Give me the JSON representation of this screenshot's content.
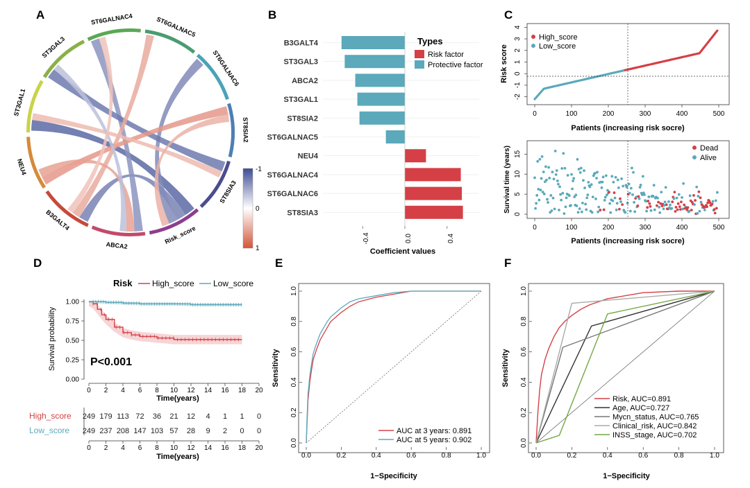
{
  "colors": {
    "red": "#d44046",
    "teal": "#5ba9bb",
    "blue": "#3f4d94",
    "orange": "#d3543a",
    "green": "#74a843",
    "gray": "#888888",
    "dark": "#333333"
  },
  "chart_data": [
    {
      "panel": "A",
      "type": "chord",
      "sectors": [
        "ST3GAL1",
        "ST3GAL3",
        "ST6GALNAC4",
        "ST6GALNAC5",
        "ST6GALNAC6",
        "ST8SIA2",
        "ST8SIA3",
        "Risk_score",
        "ABCA2",
        "B3GALT4",
        "NEU4"
      ],
      "legend": {
        "ticks": [
          "-1",
          "0",
          "1"
        ]
      },
      "links": [
        {
          "a": "Risk_score",
          "b": "ST3GAL1",
          "corr": -0.85
        },
        {
          "a": "Risk_score",
          "b": "B3GALT4",
          "corr": -0.7
        },
        {
          "a": "Risk_score",
          "b": "ST6GALNAC6",
          "corr": -0.65
        },
        {
          "a": "ABCA2",
          "b": "ST6GALNAC4",
          "corr": -0.6
        },
        {
          "a": "ST8SIA3",
          "b": "ST3GAL3",
          "corr": -0.75
        },
        {
          "a": "NEU4",
          "b": "ST8SIA2",
          "corr": 0.6
        },
        {
          "a": "B3GALT4",
          "b": "ST6GALNAC5",
          "corr": 0.5
        },
        {
          "a": "ST3GAL1",
          "b": "ST8SIA3",
          "corr": 0.4
        },
        {
          "a": "ABCA2",
          "b": "NEU4",
          "corr": 0.55
        },
        {
          "a": "Risk_score",
          "b": "ST8SIA2",
          "corr": 0.45
        },
        {
          "a": "ST3GAL3",
          "b": "ABCA2",
          "corr": -0.35
        },
        {
          "a": "ST6GALNAC4",
          "b": "B3GALT4",
          "corr": 0.35
        }
      ]
    },
    {
      "panel": "B",
      "type": "bar",
      "categories": [
        "B3GALT4",
        "ST3GAL3",
        "ABCA2",
        "ST3GAL1",
        "ST8SIA2",
        "ST6GALNAC5",
        "NEU4",
        "ST6GALNAC4",
        "ST6GALNAC6",
        "ST8SIA3"
      ],
      "values": [
        -0.6,
        -0.57,
        -0.47,
        -0.45,
        -0.43,
        -0.18,
        0.2,
        0.53,
        0.54,
        0.55
      ],
      "xlabel": "Coefficient values",
      "xticks": [
        "-0.4",
        "0.0",
        "0.4"
      ],
      "legend": {
        "title": "Types",
        "items": [
          "Risk factor",
          "Protective factor"
        ]
      }
    },
    {
      "panel": "C",
      "type": "scatter",
      "top": {
        "ylabel": "Risk score",
        "xlabel": "Patients (increasing risk socre)",
        "xticks": [
          "0",
          "100",
          "200",
          "300",
          "400",
          "500"
        ],
        "yticks": [
          "4",
          "3",
          "2",
          "1",
          "0",
          "-1",
          "-2"
        ],
        "cutoff": 245,
        "legend": [
          "High_score",
          "Low_score"
        ]
      },
      "bottom": {
        "ylabel": "Survival time (years)",
        "xlabel": "Patients (increasing risk socre)",
        "xticks": [
          "0",
          "100",
          "200",
          "300",
          "400",
          "500"
        ],
        "yticks": [
          "0",
          "5",
          "10",
          "15"
        ],
        "legend": [
          "Dead",
          "Alive"
        ]
      }
    },
    {
      "panel": "D",
      "type": "line",
      "ylabel": "Survival probability",
      "xlabel": "Time(years)",
      "xticks": [
        "0",
        "2",
        "4",
        "6",
        "8",
        "10",
        "12",
        "14",
        "16",
        "18",
        "20"
      ],
      "yticks": [
        "0.00",
        "0.25",
        "0.50",
        "0.75",
        "1.00"
      ],
      "legend": {
        "title": "Risk",
        "items": [
          "High_score",
          "Low_score"
        ]
      },
      "pvalue": "P<0.001",
      "series": [
        {
          "name": "High_score",
          "x": [
            0,
            0.5,
            1,
            1.5,
            2,
            3,
            4,
            5,
            6,
            8,
            10,
            12,
            14,
            16,
            18
          ],
          "y": [
            1,
            0.97,
            0.9,
            0.83,
            0.77,
            0.67,
            0.6,
            0.57,
            0.55,
            0.53,
            0.51,
            0.51,
            0.51,
            0.51,
            0.51
          ]
        },
        {
          "name": "Low_score",
          "x": [
            0,
            2,
            4,
            6,
            8,
            10,
            12,
            14,
            16,
            18
          ],
          "y": [
            1,
            0.99,
            0.98,
            0.97,
            0.97,
            0.97,
            0.96,
            0.96,
            0.96,
            0.96
          ]
        }
      ],
      "risk_table": {
        "rows": [
          {
            "name": "High_score",
            "values": [
              "249",
              "179",
              "113",
              "72",
              "36",
              "21",
              "12",
              "4",
              "1",
              "1",
              "0"
            ]
          },
          {
            "name": "Low_score",
            "values": [
              "249",
              "237",
              "208",
              "147",
              "103",
              "57",
              "28",
              "9",
              "2",
              "0",
              "0"
            ]
          }
        ]
      }
    },
    {
      "panel": "E",
      "type": "line",
      "xlabel": "1−Specificity",
      "ylabel": "Sensitivity",
      "ticks": [
        "0.0",
        "0.2",
        "0.4",
        "0.6",
        "0.8",
        "1.0"
      ],
      "series": [
        {
          "name": "AUC at 3 years: 0.891",
          "x": [
            0,
            0.005,
            0.01,
            0.02,
            0.03,
            0.04,
            0.06,
            0.08,
            0.1,
            0.12,
            0.14,
            0.17,
            0.2,
            0.25,
            0.3,
            0.4,
            0.5,
            0.6,
            0.8,
            1.0
          ],
          "y": [
            0,
            0.14,
            0.28,
            0.4,
            0.48,
            0.55,
            0.62,
            0.68,
            0.72,
            0.76,
            0.8,
            0.83,
            0.86,
            0.9,
            0.93,
            0.96,
            0.98,
            1,
            1,
            1
          ]
        },
        {
          "name": "AUC at 5 years: 0.902",
          "x": [
            0,
            0.005,
            0.01,
            0.02,
            0.03,
            0.04,
            0.06,
            0.08,
            0.1,
            0.12,
            0.14,
            0.17,
            0.2,
            0.25,
            0.3,
            0.4,
            0.5,
            0.6,
            0.8,
            1.0
          ],
          "y": [
            0,
            0.18,
            0.32,
            0.44,
            0.52,
            0.59,
            0.66,
            0.72,
            0.76,
            0.8,
            0.83,
            0.86,
            0.89,
            0.93,
            0.95,
            0.97,
            0.99,
            1,
            1,
            1
          ]
        }
      ]
    },
    {
      "panel": "F",
      "type": "line",
      "xlabel": "1−Specificity",
      "ylabel": "Sensitivity",
      "ticks": [
        "0.0",
        "0.2",
        "0.4",
        "0.6",
        "0.8",
        "1.0"
      ],
      "series": [
        {
          "name": "Risk, AUC=0.891",
          "x": [
            0,
            0.01,
            0.02,
            0.03,
            0.05,
            0.07,
            0.1,
            0.13,
            0.16,
            0.2,
            0.25,
            0.3,
            0.4,
            0.5,
            0.6,
            0.8,
            1
          ],
          "y": [
            0,
            0.2,
            0.35,
            0.45,
            0.55,
            0.62,
            0.7,
            0.76,
            0.8,
            0.84,
            0.88,
            0.91,
            0.95,
            0.97,
            0.99,
            1,
            1
          ]
        },
        {
          "name": "Age, AUC=0.727",
          "x": [
            0,
            0.31,
            1
          ],
          "y": [
            0,
            0.77,
            1
          ]
        },
        {
          "name": "Mycn_status, AUC=0.765",
          "x": [
            0,
            0.15,
            1
          ],
          "y": [
            0,
            0.63,
            1
          ]
        },
        {
          "name": "Clinical_risk, AUC=0.842",
          "x": [
            0,
            0.2,
            1
          ],
          "y": [
            0,
            0.92,
            1
          ]
        },
        {
          "name": "INSS_stage, AUC=0.702",
          "x": [
            0,
            0.13,
            0.4,
            1
          ],
          "y": [
            0,
            0.05,
            0.85,
            1
          ]
        }
      ]
    }
  ],
  "panels": [
    "A",
    "B",
    "C",
    "D",
    "E",
    "F"
  ]
}
